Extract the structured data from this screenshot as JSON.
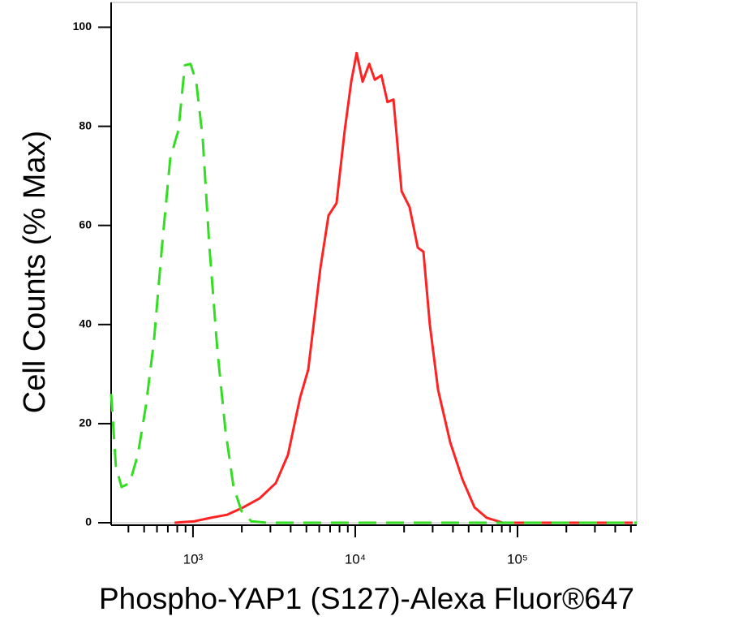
{
  "chart_data": {
    "type": "line",
    "x_label": "Phospho-YAP1 (S127)-Alexa Fluor®647",
    "y_label": "Cell Counts (% Max)",
    "x_log": true,
    "xlim": [
      313,
      543000
    ],
    "ylim": [
      0,
      105
    ],
    "xticks": [
      {
        "value": 1000,
        "label": "10³"
      },
      {
        "value": 10000,
        "label": "10⁴"
      },
      {
        "value": 100000,
        "label": "10⁵"
      }
    ],
    "xminorticks": [
      400,
      500,
      600,
      700,
      800,
      900,
      2000,
      3000,
      4000,
      5000,
      6000,
      7000,
      8000,
      9000,
      20000,
      30000,
      40000,
      50000,
      60000,
      70000,
      80000,
      90000,
      200000,
      300000,
      400000,
      500000
    ],
    "yticks": [
      0,
      20,
      40,
      60,
      80,
      100
    ],
    "series": [
      {
        "color": "#ff2222",
        "style": "solid",
        "x": [
          770,
          1020,
          1290,
          1620,
          2040,
          2570,
          3240,
          3850,
          4570,
          5130,
          6100,
          6840,
          7670,
          8610,
          9440,
          10200,
          11100,
          12200,
          13200,
          14500,
          15800,
          17200,
          19300,
          21600,
          24300,
          26300,
          28800,
          32400,
          38500,
          45700,
          54300,
          64600,
          81300,
          102000,
          204000,
          513000
        ],
        "values": [
          0,
          0.3,
          1,
          1.6,
          3.1,
          4.9,
          8,
          13.7,
          25.2,
          30.9,
          51.4,
          62,
          64.5,
          79.2,
          89,
          94.8,
          89,
          92.6,
          89.4,
          90.3,
          84.9,
          85.4,
          66.9,
          63.7,
          55.5,
          54.7,
          40,
          26.8,
          16.2,
          8.8,
          3.1,
          1,
          0,
          0,
          0,
          0
        ]
      },
      {
        "color": "#33dd22",
        "style": "dashed",
        "x": [
          313,
          335,
          363,
          407,
          457,
          513,
          575,
          646,
          724,
          813,
          891,
          966,
          1047,
          1148,
          1259,
          1413,
          1585,
          1778,
          1995,
          2291,
          2884,
          11500,
          64600,
          543000
        ],
        "values": [
          26,
          11.3,
          7.2,
          8,
          13.7,
          23.6,
          36.7,
          56.3,
          73.5,
          79.2,
          92.3,
          92.6,
          89,
          77.6,
          56.3,
          35,
          18.7,
          7.2,
          2.3,
          0.3,
          0,
          0,
          0,
          0
        ]
      }
    ]
  }
}
